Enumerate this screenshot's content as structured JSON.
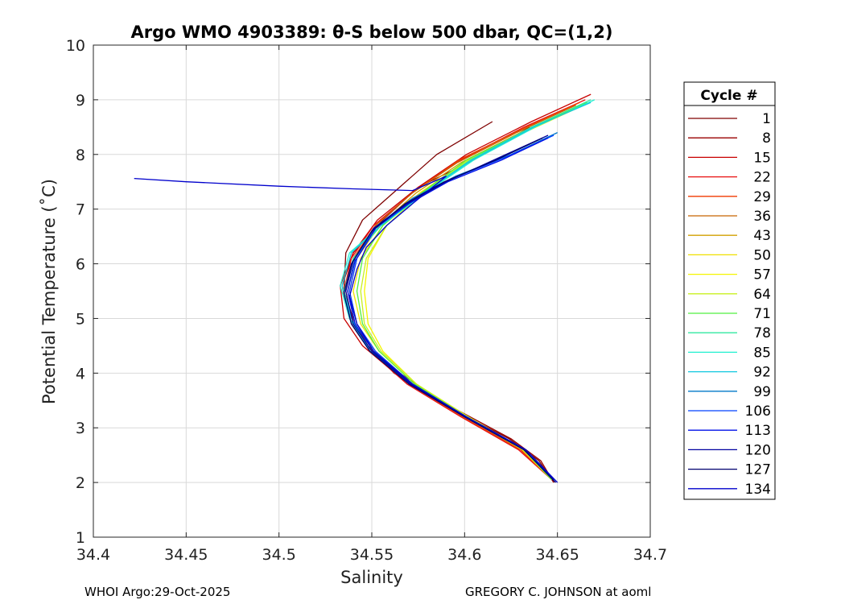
{
  "chart_data": {
    "type": "line",
    "title": "Argo WMO 4903389: θ-S below 500 dbar,  QC=(1,2)",
    "xlabel": "Salinity",
    "ylabel": "Potential Temperature (˚C)",
    "xlim": [
      34.4,
      34.7
    ],
    "ylim": [
      1,
      10
    ],
    "xticks": [
      34.4,
      34.45,
      34.5,
      34.55,
      34.6,
      34.65,
      34.7
    ],
    "xtick_labels": [
      "34.4",
      "34.45",
      "34.5",
      "34.55",
      "34.6",
      "34.65",
      "34.7"
    ],
    "yticks": [
      1,
      2,
      3,
      4,
      5,
      6,
      7,
      8,
      9,
      10
    ],
    "ytick_labels": [
      "1",
      "2",
      "3",
      "4",
      "5",
      "6",
      "7",
      "8",
      "9",
      "10"
    ],
    "grid": true,
    "legend": {
      "title": "Cycle #",
      "placement": "outside-right",
      "entries": [
        "1",
        "8",
        "15",
        "22",
        "29",
        "36",
        "43",
        "50",
        "57",
        "64",
        "71",
        "78",
        "85",
        "92",
        "99",
        "106",
        "113",
        "120",
        "127",
        "134"
      ],
      "colors": [
        "#7f0000",
        "#9a0000",
        "#c80000",
        "#e81010",
        "#f03a00",
        "#c86400",
        "#d2a000",
        "#f0e000",
        "#f5f500",
        "#c8f020",
        "#50f040",
        "#30e8a0",
        "#20f0d0",
        "#10c8e0",
        "#0078c8",
        "#0040ff",
        "#0010e8",
        "#0000a0",
        "#00006e",
        "#0000cc"
      ]
    },
    "series": [
      {
        "name": "1",
        "color": "#7f0000",
        "x": [
          34.615,
          34.585,
          34.565,
          34.545,
          34.536,
          34.535,
          34.541,
          34.548,
          34.562,
          34.59,
          34.624,
          34.64,
          34.648
        ],
        "y": [
          8.6,
          8.0,
          7.4,
          6.8,
          6.2,
          5.5,
          4.9,
          4.5,
          4.0,
          3.4,
          2.8,
          2.4,
          2.0
        ]
      },
      {
        "name": "8",
        "color": "#9a0000",
        "x": [
          34.635,
          34.605,
          34.575,
          34.556,
          34.54,
          34.534,
          34.538,
          34.547,
          34.565,
          34.592,
          34.625,
          34.641,
          34.648
        ],
        "y": [
          8.5,
          7.9,
          7.4,
          6.8,
          6.2,
          5.6,
          5.0,
          4.5,
          4.0,
          3.4,
          2.8,
          2.4,
          2.0
        ]
      },
      {
        "name": "15",
        "color": "#c80000",
        "x": [
          34.668,
          34.636,
          34.601,
          34.575,
          34.553,
          34.54,
          34.533,
          34.535,
          34.545,
          34.566,
          34.595,
          34.627,
          34.647
        ],
        "y": [
          9.1,
          8.6,
          8.0,
          7.4,
          6.8,
          6.2,
          5.6,
          5.0,
          4.5,
          3.9,
          3.3,
          2.7,
          2.05
        ]
      },
      {
        "name": "22",
        "color": "#e81010",
        "x": [
          34.665,
          34.632,
          34.598,
          34.572,
          34.551,
          34.539,
          34.535,
          34.539,
          34.549,
          34.569,
          34.598,
          34.629,
          34.647
        ],
        "y": [
          9.0,
          8.5,
          7.9,
          7.3,
          6.7,
          6.1,
          5.5,
          4.9,
          4.4,
          3.8,
          3.2,
          2.6,
          2.05
        ]
      },
      {
        "name": "29",
        "color": "#f03a00",
        "x": [
          34.662,
          34.63,
          34.597,
          34.572,
          34.552,
          34.54,
          34.536,
          34.54,
          34.55,
          34.57,
          34.599,
          34.63,
          34.647
        ],
        "y": [
          8.95,
          8.45,
          7.9,
          7.3,
          6.7,
          6.1,
          5.5,
          4.9,
          4.4,
          3.8,
          3.2,
          2.6,
          2.05
        ]
      },
      {
        "name": "36",
        "color": "#c86400",
        "x": [
          34.66,
          34.628,
          34.596,
          34.572,
          34.552,
          34.541,
          34.537,
          34.541,
          34.551,
          34.571,
          34.6,
          34.631,
          34.647
        ],
        "y": [
          8.9,
          8.4,
          7.85,
          7.3,
          6.7,
          6.1,
          5.5,
          4.9,
          4.4,
          3.8,
          3.2,
          2.6,
          2.05
        ]
      },
      {
        "name": "43",
        "color": "#d2a000",
        "x": [
          34.662,
          34.63,
          34.598,
          34.574,
          34.554,
          34.542,
          34.538,
          34.542,
          34.552,
          34.572,
          34.601,
          34.631,
          34.647
        ],
        "y": [
          8.9,
          8.4,
          7.85,
          7.3,
          6.7,
          6.1,
          5.5,
          4.9,
          4.4,
          3.8,
          3.2,
          2.6,
          2.05
        ]
      },
      {
        "name": "50",
        "color": "#f0e000",
        "x": [
          34.664,
          34.632,
          34.6,
          34.576,
          34.556,
          34.544,
          34.54,
          34.544,
          34.554,
          34.573,
          34.601,
          34.631,
          34.647
        ],
        "y": [
          8.9,
          8.4,
          7.85,
          7.3,
          6.7,
          6.1,
          5.5,
          4.9,
          4.4,
          3.8,
          3.2,
          2.6,
          2.05
        ]
      },
      {
        "name": "57",
        "color": "#f5f500",
        "x": [
          34.664,
          34.632,
          34.6,
          34.577,
          34.558,
          34.548,
          34.546,
          34.548,
          34.556,
          34.574,
          34.602,
          34.632,
          34.647
        ],
        "y": [
          8.9,
          8.4,
          7.85,
          7.3,
          6.7,
          6.1,
          5.5,
          4.9,
          4.4,
          3.8,
          3.2,
          2.6,
          2.05
        ]
      },
      {
        "name": "64",
        "color": "#c8f020",
        "x": [
          34.666,
          34.634,
          34.602,
          34.578,
          34.558,
          34.547,
          34.544,
          34.546,
          34.555,
          34.574,
          34.602,
          34.632,
          34.647
        ],
        "y": [
          8.95,
          8.45,
          7.9,
          7.3,
          6.7,
          6.1,
          5.5,
          4.9,
          4.4,
          3.8,
          3.2,
          2.6,
          2.05
        ]
      },
      {
        "name": "71",
        "color": "#50f040",
        "x": [
          34.666,
          34.634,
          34.601,
          34.577,
          34.556,
          34.545,
          34.542,
          34.545,
          34.554,
          34.573,
          34.601,
          34.632,
          34.647
        ],
        "y": [
          8.95,
          8.45,
          7.9,
          7.3,
          6.7,
          6.1,
          5.5,
          4.9,
          4.4,
          3.8,
          3.2,
          2.6,
          2.05
        ]
      },
      {
        "name": "78",
        "color": "#30e8a0",
        "x": [
          34.668,
          34.636,
          34.603,
          34.578,
          34.555,
          34.54,
          34.535,
          34.54,
          34.55,
          34.571,
          34.6,
          34.632,
          34.648
        ],
        "y": [
          9.0,
          8.5,
          7.9,
          7.3,
          6.7,
          6.1,
          5.5,
          4.9,
          4.4,
          3.8,
          3.2,
          2.6,
          2.05
        ]
      },
      {
        "name": "85",
        "color": "#20f0d0",
        "x": [
          34.67,
          34.638,
          34.605,
          34.579,
          34.555,
          34.538,
          34.533,
          34.538,
          34.549,
          34.571,
          34.6,
          34.632,
          34.648
        ],
        "y": [
          9.0,
          8.5,
          7.9,
          7.3,
          6.7,
          6.2,
          5.6,
          5.0,
          4.4,
          3.8,
          3.2,
          2.6,
          2.05
        ]
      },
      {
        "name": "92",
        "color": "#10c8e0",
        "x": [
          34.668,
          34.637,
          34.604,
          34.578,
          34.555,
          34.539,
          34.534,
          34.539,
          34.549,
          34.571,
          34.6,
          34.632,
          34.648
        ],
        "y": [
          8.95,
          8.5,
          7.9,
          7.3,
          6.7,
          6.2,
          5.6,
          5.0,
          4.4,
          3.8,
          3.2,
          2.6,
          2.05
        ]
      },
      {
        "name": "99",
        "color": "#0078c8",
        "x": [
          34.65,
          34.625,
          34.595,
          34.572,
          34.553,
          34.541,
          34.537,
          34.541,
          34.551,
          34.572,
          34.601,
          34.632,
          34.648
        ],
        "y": [
          8.4,
          8.0,
          7.6,
          7.2,
          6.7,
          6.1,
          5.5,
          4.9,
          4.4,
          3.8,
          3.2,
          2.6,
          2.05
        ]
      },
      {
        "name": "106",
        "color": "#0040ff",
        "x": [
          34.648,
          34.622,
          34.593,
          34.571,
          34.553,
          34.542,
          34.538,
          34.542,
          34.552,
          34.572,
          34.601,
          34.632,
          34.648
        ],
        "y": [
          8.35,
          7.95,
          7.55,
          7.15,
          6.7,
          6.1,
          5.5,
          4.9,
          4.4,
          3.8,
          3.2,
          2.6,
          2.05
        ]
      },
      {
        "name": "113",
        "color": "#0010e8",
        "x": [
          34.645,
          34.62,
          34.591,
          34.57,
          34.552,
          34.541,
          34.537,
          34.541,
          34.551,
          34.571,
          34.6,
          34.632,
          34.648
        ],
        "y": [
          8.3,
          7.9,
          7.5,
          7.1,
          6.65,
          6.05,
          5.5,
          4.9,
          4.4,
          3.8,
          3.2,
          2.6,
          2.05
        ]
      },
      {
        "name": "120",
        "color": "#0000a0",
        "x": [
          34.645,
          34.619,
          34.59,
          34.569,
          34.551,
          34.54,
          34.536,
          34.54,
          34.55,
          34.571,
          34.6,
          34.632,
          34.649
        ],
        "y": [
          8.35,
          7.95,
          7.5,
          7.1,
          6.65,
          6.05,
          5.5,
          4.9,
          4.4,
          3.8,
          3.2,
          2.6,
          2.0
        ]
      },
      {
        "name": "127",
        "color": "#00006e",
        "x": [
          34.642,
          34.617,
          34.589,
          34.568,
          34.55,
          34.539,
          34.535,
          34.539,
          34.549,
          34.57,
          34.6,
          34.632,
          34.649
        ],
        "y": [
          8.3,
          7.9,
          7.5,
          7.1,
          6.6,
          6.0,
          5.45,
          4.9,
          4.4,
          3.8,
          3.2,
          2.6,
          2.0
        ]
      },
      {
        "name": "134",
        "color": "#0000cc",
        "x": [
          34.422,
          34.45,
          34.5,
          34.54,
          34.572,
          34.59,
          34.572,
          34.558,
          34.547,
          34.542,
          34.538,
          34.542,
          34.551,
          34.572,
          34.601,
          34.633,
          34.65
        ],
        "y": [
          7.56,
          7.5,
          7.42,
          7.37,
          7.34,
          7.6,
          7.1,
          6.7,
          6.3,
          5.9,
          5.4,
          4.9,
          4.4,
          3.8,
          3.2,
          2.6,
          2.0
        ]
      }
    ]
  },
  "footer": {
    "left": "WHOI Argo:29-Oct-2025",
    "right": "GREGORY C. JOHNSON at aoml"
  }
}
